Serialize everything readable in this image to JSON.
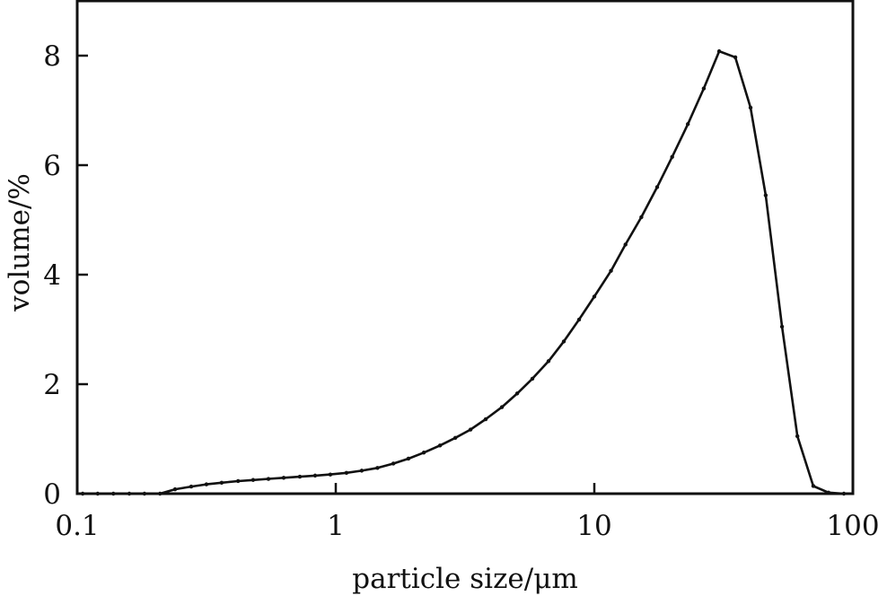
{
  "chart_data": {
    "type": "line",
    "title": "",
    "xlabel": "particle size/μm",
    "ylabel": "volume/%",
    "x_scale": "log",
    "xlim": [
      0.1,
      100
    ],
    "ylim": [
      0,
      9
    ],
    "x_ticks": [
      {
        "value": 0.1,
        "label": "0.1"
      },
      {
        "value": 1,
        "label": "1"
      },
      {
        "value": 10,
        "label": "10"
      },
      {
        "value": 100,
        "label": "100"
      }
    ],
    "y_ticks": [
      {
        "value": 0,
        "label": "0"
      },
      {
        "value": 2,
        "label": "2"
      },
      {
        "value": 4,
        "label": "4"
      },
      {
        "value": 6,
        "label": "6"
      },
      {
        "value": 8,
        "label": "8"
      }
    ],
    "grid": false,
    "line_color": "#111111",
    "markers": true,
    "series": [
      {
        "x": [
          0.105,
          0.12,
          0.138,
          0.159,
          0.182,
          0.209,
          0.239,
          0.276,
          0.316,
          0.362,
          0.419,
          0.479,
          0.549,
          0.629,
          0.726,
          0.832,
          0.953,
          1.1,
          1.26,
          1.45,
          1.67,
          1.91,
          2.19,
          2.53,
          2.9,
          3.32,
          3.8,
          4.39,
          5.03,
          5.76,
          6.65,
          7.62,
          8.73,
          10.0,
          11.6,
          13.2,
          15.2,
          17.5,
          20.0,
          23.0,
          26.5,
          30.4,
          35.1,
          40.2,
          46.0,
          53.2,
          61.0,
          70.3,
          80.5,
          92.3
        ],
        "y": [
          0,
          0,
          0,
          0,
          0,
          0,
          0.08,
          0.13,
          0.17,
          0.2,
          0.23,
          0.25,
          0.27,
          0.29,
          0.31,
          0.33,
          0.35,
          0.38,
          0.42,
          0.47,
          0.55,
          0.64,
          0.75,
          0.88,
          1.02,
          1.17,
          1.36,
          1.58,
          1.83,
          2.1,
          2.42,
          2.78,
          3.18,
          3.6,
          4.07,
          4.55,
          5.05,
          5.6,
          6.15,
          6.75,
          7.4,
          8.08,
          7.97,
          7.05,
          5.45,
          3.05,
          1.05,
          0.14,
          0.02,
          0
        ]
      }
    ]
  }
}
